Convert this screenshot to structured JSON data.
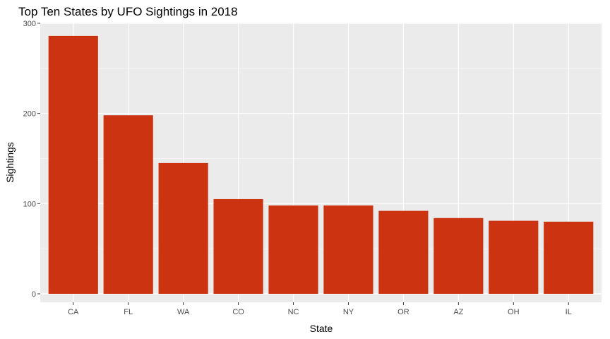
{
  "chart_data": {
    "type": "bar",
    "title": "Top Ten States by UFO Sightings in 2018",
    "xlabel": "State",
    "ylabel": "Sightings",
    "categories": [
      "CA",
      "FL",
      "WA",
      "CO",
      "NC",
      "NY",
      "OR",
      "AZ",
      "OH",
      "IL"
    ],
    "values": [
      286,
      198,
      145,
      105,
      98,
      98,
      92,
      84,
      81,
      80
    ],
    "ylim": [
      0,
      300
    ],
    "yticks": [
      0,
      100,
      200,
      300
    ],
    "ytick_labels": [
      "0",
      "100",
      "200",
      "300"
    ],
    "grid": true,
    "legend": "none",
    "colors": {
      "bar": "#cc3311",
      "panel": "#ebebeb",
      "grid_major": "#ffffff",
      "grid_minor": "#f5f5f5"
    }
  }
}
